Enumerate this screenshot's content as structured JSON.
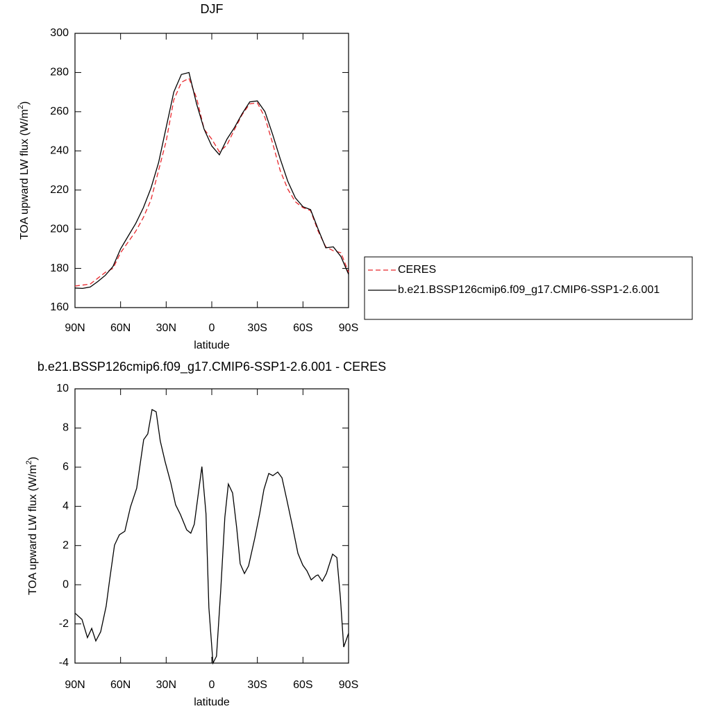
{
  "chart_data": [
    {
      "type": "line",
      "title": "DJF",
      "xlabel": "latitude",
      "ylabel": "TOA upward LW flux (W/m",
      "ylabel_sup": "2",
      "ylabel_end": ")",
      "xlim": [
        90,
        -90
      ],
      "xticks": [
        {
          "value": 90,
          "label": "90N"
        },
        {
          "value": 60,
          "label": "60N"
        },
        {
          "value": 30,
          "label": "30N"
        },
        0,
        {
          "value": -30,
          "label": "30S"
        },
        {
          "value": -60,
          "label": "60S"
        },
        {
          "value": -90,
          "label": "90S"
        }
      ],
      "ylim": [
        160,
        300
      ],
      "yticks": [
        160,
        180,
        200,
        220,
        240,
        260,
        280,
        300
      ],
      "legend": "right",
      "x": [
        90,
        85,
        80,
        75,
        70,
        65,
        60,
        55,
        50,
        45,
        40,
        35,
        30,
        25,
        20,
        15,
        10,
        5,
        0,
        -5,
        -10,
        -15,
        -20,
        -25,
        -30,
        -35,
        -40,
        -45,
        -50,
        -55,
        -60,
        -65,
        -70,
        -75,
        -80,
        -85,
        -90
      ],
      "series": [
        {
          "name": "CERES",
          "color": "#e8262b",
          "dash": true,
          "values": [
            171,
            171.5,
            172,
            175,
            178,
            180,
            188,
            193.5,
            199,
            206,
            215,
            230,
            245,
            266,
            275,
            277,
            267,
            251,
            246,
            239.5,
            243,
            251,
            258.5,
            264,
            264.5,
            257,
            244,
            230,
            220.5,
            214,
            211,
            209.5,
            199,
            191,
            189,
            188,
            178
          ]
        },
        {
          "name": "b.e21.BSSP126cmip6.f09_g17.CMIP6-SSP1-2.6.001",
          "color": "#000000",
          "dash": false,
          "values": [
            170,
            169.8,
            170.5,
            173.3,
            176.5,
            181,
            190,
            196.5,
            203,
            211,
            221,
            234,
            252,
            270,
            279,
            280,
            264,
            251,
            242.5,
            238,
            246,
            252,
            259,
            265,
            265.5,
            260,
            248.5,
            236,
            224.5,
            216,
            211.5,
            210,
            200,
            190.5,
            191,
            186,
            177
          ]
        }
      ]
    },
    {
      "type": "line",
      "title": "b.e21.BSSP126cmip6.f09_g17.CMIP6-SSP1-2.6.001 - CERES",
      "xlabel": "latitude",
      "ylabel": "TOA upward LW flux (W/m",
      "ylabel_sup": "2",
      "ylabel_end": ")",
      "xlim": [
        90,
        -90
      ],
      "xticks": [
        {
          "value": 90,
          "label": "90N"
        },
        {
          "value": 60,
          "label": "60N"
        },
        {
          "value": 30,
          "label": "30N"
        },
        0,
        {
          "value": -30,
          "label": "30S"
        },
        {
          "value": -60,
          "label": "60S"
        },
        {
          "value": -90,
          "label": "90S"
        }
      ],
      "ylim": [
        -4,
        10
      ],
      "yticks": [
        -4,
        -2,
        0,
        2,
        4,
        6,
        8,
        10
      ],
      "x": [
        90,
        85.4,
        81.8,
        79.0,
        76.3,
        73.1,
        69.5,
        67.2,
        64.0,
        60.8,
        57.2,
        53.5,
        49.4,
        44.8,
        42.1,
        39.3,
        36.6,
        33.9,
        30.7,
        27.0,
        23.8,
        20.6,
        16.5,
        13.8,
        11.5,
        8.8,
        6.5,
        3.8,
        1.9,
        -0.8,
        -3.1,
        -5.9,
        -8.6,
        -10.9,
        -13.7,
        -16.4,
        -18.7,
        -21.5,
        -24.2,
        -28.3,
        -31.5,
        -34.3,
        -37.5,
        -40.2,
        -43.4,
        -46.2,
        -49.4,
        -53.0,
        -56.7,
        -59.9,
        -62.6,
        -65.4,
        -68.6,
        -69.9,
        -72.7,
        -75.4,
        -79.5,
        -82.3,
        -84.6,
        -86.8,
        -90
      ],
      "series": [
        {
          "color": "#000000",
          "dash": false,
          "values": [
            -1.45,
            -1.77,
            -2.7,
            -2.23,
            -2.87,
            -2.4,
            -1.1,
            0.25,
            2.02,
            2.55,
            2.73,
            3.97,
            4.93,
            7.41,
            7.7,
            8.94,
            8.83,
            7.34,
            6.28,
            5.21,
            4.08,
            3.58,
            2.8,
            2.63,
            3.09,
            4.68,
            6.03,
            3.62,
            -1.17,
            -4,
            -3.65,
            -0.28,
            3.44,
            5.14,
            4.68,
            2.9,
            1.07,
            0.57,
            0.96,
            2.38,
            3.62,
            4.86,
            5.68,
            5.57,
            5.75,
            5.46,
            4.33,
            3.02,
            1.6,
            1.0,
            0.71,
            0.25,
            0.46,
            0.5,
            0.18,
            0.57,
            1.56,
            1.39,
            -0.63,
            -3.18,
            -2.48
          ]
        }
      ]
    }
  ]
}
